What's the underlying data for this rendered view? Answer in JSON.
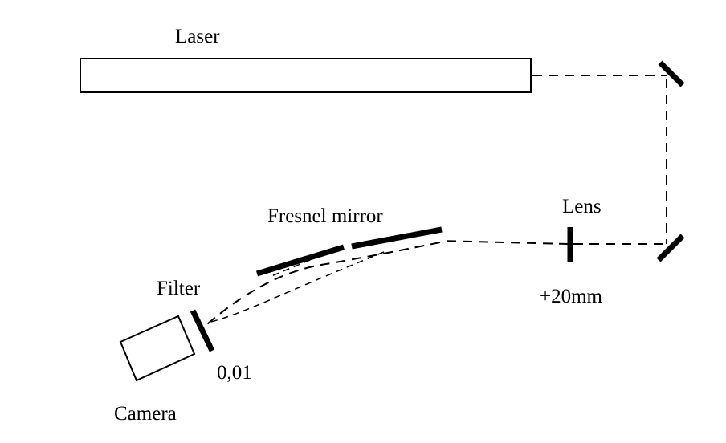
{
  "labels": {
    "laser": "Laser",
    "lens": "Lens",
    "lens_focal": "+20mm",
    "fresnel_mirror": "Fresnel mirror",
    "filter": "Filter",
    "filter_value": "0,01",
    "camera": "Camera"
  },
  "colors": {
    "background": "#ffffff",
    "ink": "#000000"
  }
}
